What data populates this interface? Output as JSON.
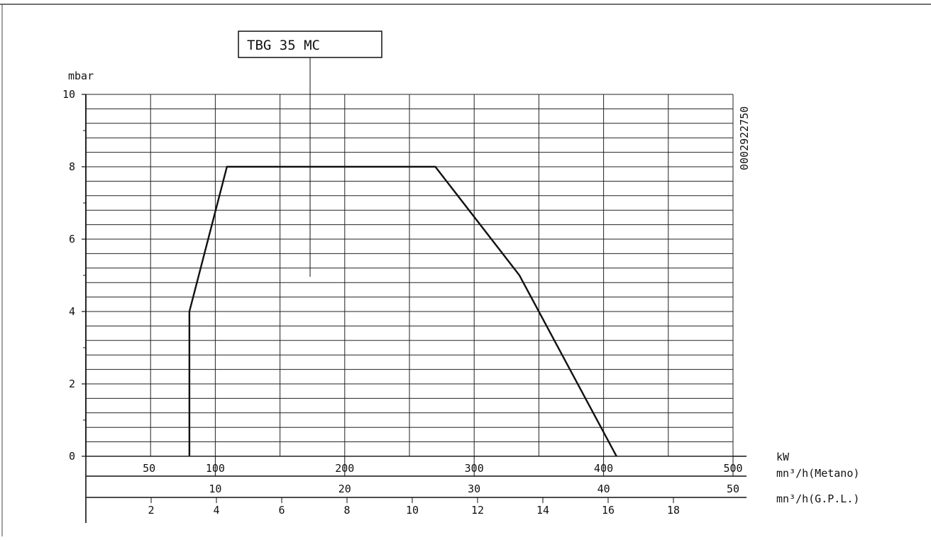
{
  "chart_data": {
    "type": "line",
    "model_label": "TBG 35 MC",
    "doc_code": "0002922750",
    "ylabel": "mbar",
    "ylim": [
      0,
      10
    ],
    "y_ticks": [
      "0",
      "2",
      "4",
      "6",
      "8",
      "10"
    ],
    "xlim": [
      0,
      500
    ],
    "axes": [
      {
        "unit": "kW",
        "ticks": [
          "50",
          "100",
          "200",
          "300",
          "400",
          "500"
        ],
        "tick_values": [
          50,
          100,
          200,
          300,
          400,
          500
        ]
      },
      {
        "unit": "mn³/h(Metano)",
        "ticks": [
          "10",
          "20",
          "30",
          "40",
          "50"
        ],
        "tick_values": [
          10,
          20,
          30,
          40,
          50
        ]
      },
      {
        "unit": "mn³/h(G.P.L.)",
        "ticks": [
          "2",
          "4",
          "6",
          "8",
          "10",
          "12",
          "14",
          "16",
          "18"
        ],
        "tick_values": [
          2,
          4,
          6,
          8,
          10,
          12,
          14,
          16,
          18
        ]
      }
    ],
    "grid": true,
    "series": [
      {
        "x": [
          80,
          80,
          109,
          270,
          335,
          410
        ],
        "y": [
          0,
          4,
          8,
          8,
          5,
          0
        ]
      }
    ]
  }
}
